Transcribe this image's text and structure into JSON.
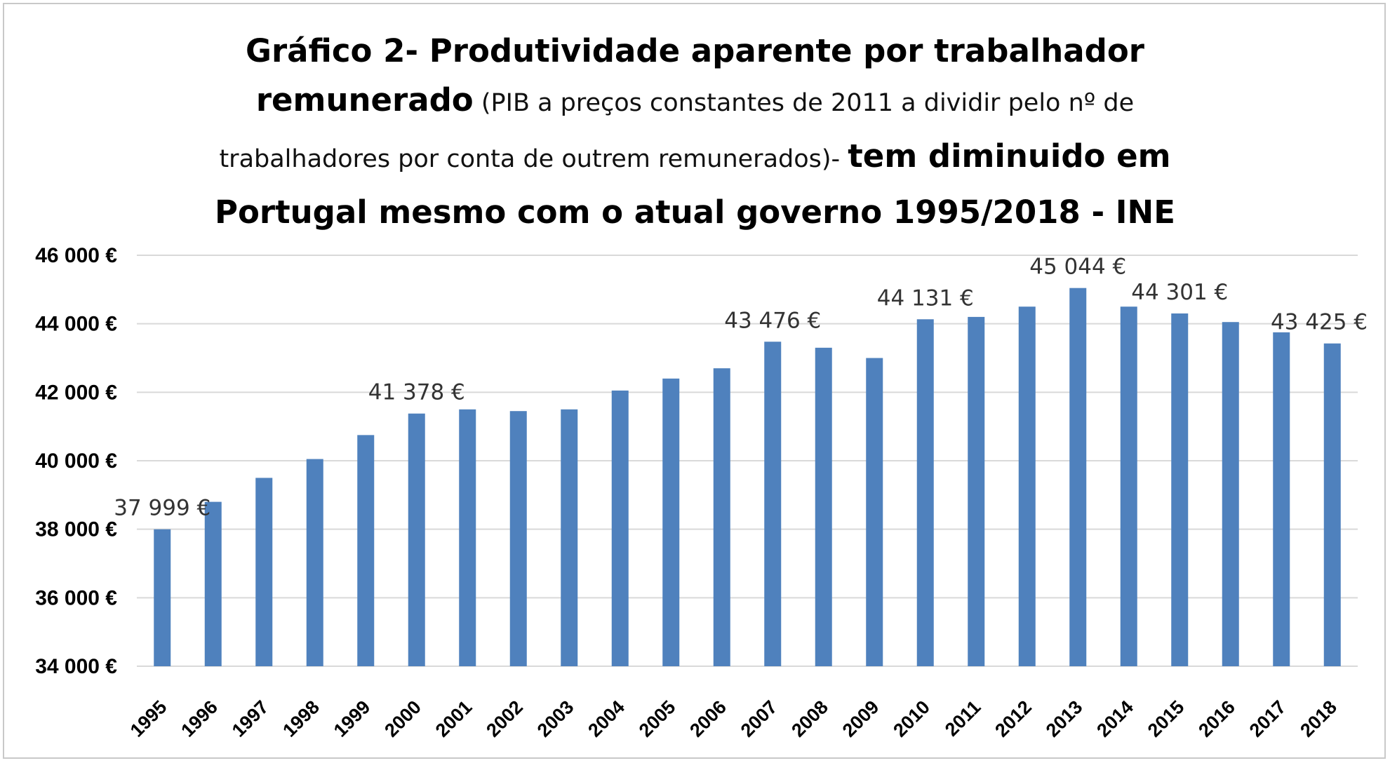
{
  "title": {
    "line1": "Gráfico 2- Produtividade aparente por trabalhador",
    "line2_bold": "remunerado",
    "line2_normal": " (PIB a preços constantes de 2011 a dividir pelo nº de",
    "line3_normal": "trabalhadores por conta de outrem remunerados)- ",
    "line3_bold": "tem diminuido em",
    "line4": "Portugal mesmo com o atual governo 1995/2018 - INE"
  },
  "chart_data": {
    "type": "bar",
    "categories": [
      "1995",
      "1996",
      "1997",
      "1998",
      "1999",
      "2000",
      "2001",
      "2002",
      "2003",
      "2004",
      "2005",
      "2006",
      "2007",
      "2008",
      "2009",
      "2010",
      "2011",
      "2012",
      "2013",
      "2014",
      "2015",
      "2016",
      "2017",
      "2018"
    ],
    "values": [
      37999,
      38800,
      39500,
      40050,
      40750,
      41378,
      41500,
      41450,
      41500,
      42050,
      42400,
      42700,
      43476,
      43300,
      43000,
      44131,
      44200,
      44500,
      45044,
      44500,
      44301,
      44050,
      43750,
      43425
    ],
    "data_labels": [
      {
        "category": "1995",
        "text": "37 999 €"
      },
      {
        "category": "2000",
        "text": "41 378 €"
      },
      {
        "category": "2007",
        "text": "43 476 €"
      },
      {
        "category": "2010",
        "text": "44 131 €"
      },
      {
        "category": "2013",
        "text": "45 044 €"
      },
      {
        "category": "2015",
        "text": "44 301 €"
      },
      {
        "category": "2018",
        "text": "43 425 €"
      }
    ],
    "yticks": [
      34000,
      36000,
      38000,
      40000,
      42000,
      44000,
      46000
    ],
    "ytick_labels": [
      "34 000 €",
      "36 000 €",
      "38 000 €",
      "40 000 €",
      "42 000 €",
      "44 000 €",
      "46 000 €"
    ],
    "ylim": [
      34000,
      46000
    ],
    "grid": true,
    "bar_color": "#4f81bd",
    "grid_color": "#d9d9d9"
  }
}
